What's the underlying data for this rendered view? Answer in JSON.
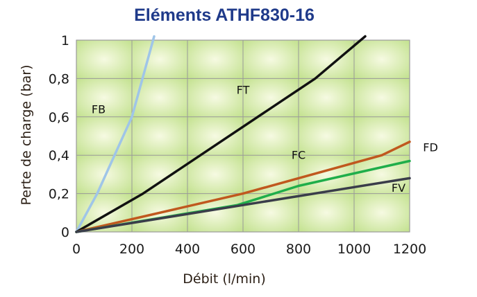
{
  "chart_data": {
    "type": "line",
    "title": "Eléments ATHF830-16",
    "xlabel": "Débit (l/min)",
    "ylabel": "Perte de charge (bar)",
    "xlim": [
      0,
      1200
    ],
    "ylim": [
      0,
      1.0
    ],
    "x_ticks": [
      0,
      200,
      400,
      600,
      800,
      1000,
      1200
    ],
    "x_tick_labels": [
      "0",
      "200",
      "400",
      "600",
      "800",
      "1000",
      "1200"
    ],
    "y_ticks": [
      0,
      0.2,
      0.4,
      0.6,
      0.8,
      1.0
    ],
    "y_tick_labels": [
      "0",
      "0,2",
      "0,4",
      "0,6",
      "0,8",
      "1"
    ],
    "grid": true,
    "series": [
      {
        "name": "FB",
        "color": "#9fc5e8",
        "x": [
          0,
          75,
          200,
          280
        ],
        "y": [
          0,
          0.2,
          0.6,
          1.02
        ],
        "label_at": [
          80,
          0.62
        ]
      },
      {
        "name": "FT",
        "color": "#111111",
        "x": [
          0,
          240,
          860,
          1040
        ],
        "y": [
          0,
          0.2,
          0.8,
          1.02
        ],
        "label_at": [
          600,
          0.72
        ]
      },
      {
        "name": "FC",
        "color": "#c0581e",
        "x": [
          0,
          600,
          1100,
          1200
        ],
        "y": [
          0,
          0.2,
          0.4,
          0.47
        ],
        "label_at": [
          800,
          0.38
        ]
      },
      {
        "name": "FD",
        "color": "#c0581e",
        "x": [],
        "y": [],
        "label_at": [
          1275,
          0.42
        ]
      },
      {
        "name": "FV",
        "color": "#1fae4a",
        "x": [
          0,
          580,
          800,
          1200
        ],
        "y": [
          0,
          0.14,
          0.24,
          0.37
        ],
        "label_at": [
          1160,
          0.21
        ]
      },
      {
        "name": "",
        "color": "#3a3d4a",
        "x": [
          0,
          1200
        ],
        "y": [
          0,
          0.28
        ],
        "label_at": null
      }
    ],
    "colors": {
      "title": "#1f3a8a",
      "grid": "#999999",
      "cell_dark": "#c9e59b",
      "cell_light": "#f4f9df"
    }
  }
}
